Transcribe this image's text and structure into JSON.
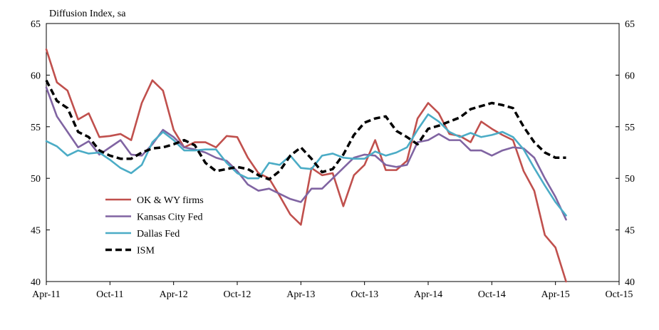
{
  "chart_data": {
    "type": "line",
    "ylabel": "Diffusion Index, sa",
    "ylim": [
      40,
      65
    ],
    "y_ticks": [
      "40",
      "45",
      "50",
      "55",
      "60",
      "65"
    ],
    "y_right_ticks": [
      "40",
      "45",
      "50",
      "55",
      "60",
      "65"
    ],
    "x_ticks": [
      "Apr-11",
      "Oct-11",
      "Apr-12",
      "Oct-12",
      "Apr-13",
      "Oct-13",
      "Apr-14",
      "Oct-14",
      "Apr-15",
      "Oct-15"
    ],
    "x_tick_months": [
      0,
      6,
      12,
      18,
      24,
      30,
      36,
      42,
      48,
      54
    ],
    "x_range_months": [
      0,
      54
    ],
    "grid": false,
    "legend_position": "lower-left",
    "series": [
      {
        "name": "OK & WY firms",
        "color": "#c0504d",
        "dash": "solid",
        "values": [
          62.5,
          59.3,
          58.5,
          55.7,
          56.3,
          54.0,
          54.1,
          54.3,
          53.7,
          57.3,
          59.5,
          58.5,
          54.7,
          53.0,
          53.5,
          53.5,
          53.0,
          54.1,
          54.0,
          52.0,
          50.5,
          50.0,
          48.3,
          46.5,
          45.5,
          51.0,
          50.3,
          50.5,
          47.3,
          50.3,
          51.3,
          53.7,
          50.8,
          50.8,
          51.7,
          55.8,
          57.3,
          56.3,
          54.3,
          54.1,
          53.5,
          55.5,
          54.8,
          54.2,
          53.7,
          50.7,
          48.8,
          44.5,
          43.3,
          40.0
        ]
      },
      {
        "name": "Kansas City Fed",
        "color": "#8064a2",
        "dash": "solid",
        "values": [
          58.8,
          56.0,
          54.5,
          53.0,
          53.6,
          52.3,
          53.0,
          53.7,
          52.3,
          52.2,
          53.3,
          54.7,
          54.0,
          53.0,
          52.8,
          52.5,
          52.0,
          51.7,
          50.7,
          49.4,
          48.8,
          49.0,
          48.5,
          48.0,
          47.7,
          49.0,
          49.0,
          50.0,
          51.0,
          52.0,
          52.3,
          52.2,
          51.3,
          51.1,
          51.3,
          53.5,
          53.7,
          54.3,
          53.7,
          53.7,
          52.7,
          52.7,
          52.2,
          52.7,
          53.0,
          52.9,
          52.0,
          50.0,
          48.2,
          46.0
        ]
      },
      {
        "name": "Dallas Fed",
        "color": "#4bacc6",
        "dash": "solid",
        "values": [
          53.6,
          53.1,
          52.2,
          52.7,
          52.4,
          52.5,
          51.8,
          51.0,
          50.5,
          51.3,
          53.5,
          54.5,
          53.7,
          52.7,
          52.7,
          52.8,
          52.8,
          51.5,
          50.5,
          50.0,
          50.0,
          51.5,
          51.3,
          52.2,
          51.0,
          50.9,
          52.2,
          52.4,
          52.0,
          51.9,
          51.9,
          52.6,
          52.2,
          52.5,
          53.0,
          54.7,
          56.2,
          55.5,
          54.5,
          54.0,
          54.4,
          54.0,
          54.2,
          54.5,
          54.0,
          52.8,
          51.0,
          49.3,
          47.7,
          46.4
        ]
      },
      {
        "name": "ISM",
        "color": "#000000",
        "dash": "dashed",
        "values": [
          59.5,
          57.5,
          56.8,
          54.5,
          54.0,
          52.7,
          52.2,
          51.9,
          51.9,
          52.5,
          52.9,
          53.0,
          53.3,
          53.7,
          53.2,
          51.5,
          50.7,
          50.9,
          51.1,
          50.9,
          50.3,
          49.9,
          50.7,
          52.2,
          53.0,
          51.9,
          50.6,
          50.9,
          52.3,
          54.2,
          55.4,
          55.8,
          56.0,
          54.6,
          54.0,
          53.3,
          54.8,
          55.1,
          55.5,
          55.9,
          56.7,
          57.0,
          57.3,
          57.1,
          56.8,
          55.0,
          53.5,
          52.5,
          52.0,
          52.0
        ]
      }
    ]
  }
}
